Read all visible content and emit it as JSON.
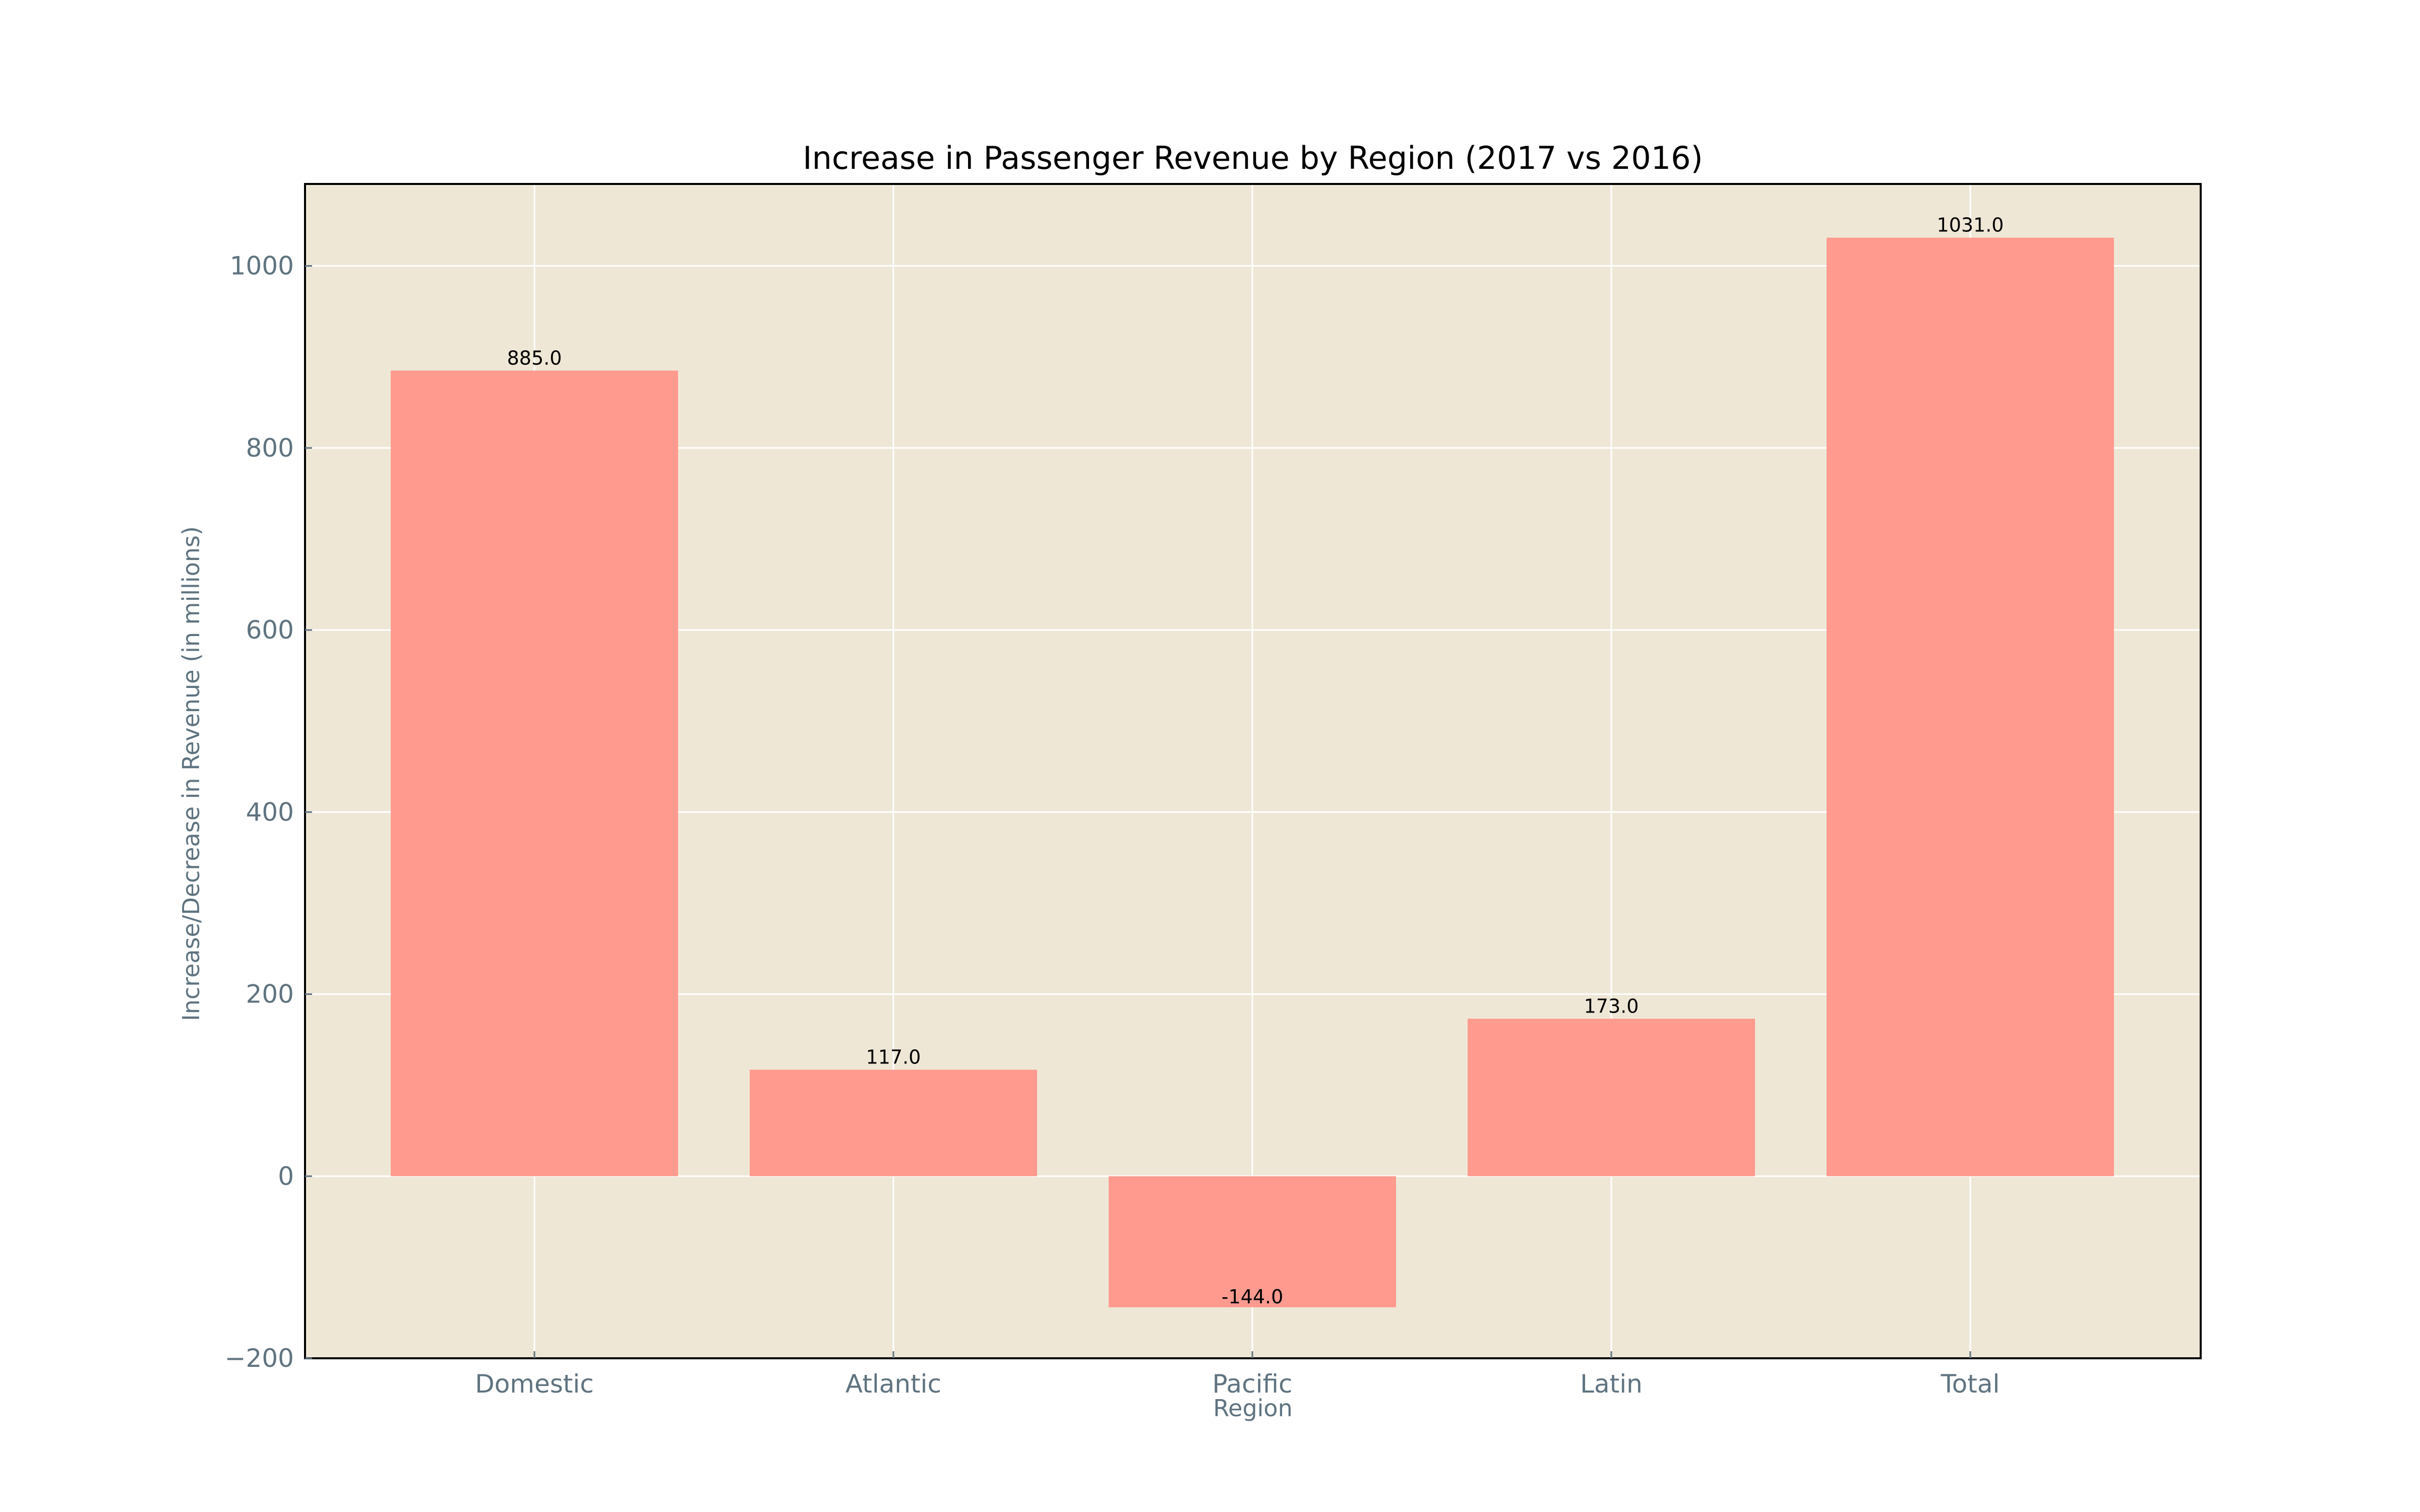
{
  "chart_data": {
    "type": "bar",
    "title": "Increase in Passenger Revenue by Region (2017 vs 2016)",
    "xlabel": "Region",
    "ylabel": "Increase/Decrease in Revenue (in millions)",
    "categories": [
      "Domestic",
      "Atlantic",
      "Pacific",
      "Latin",
      "Total"
    ],
    "values": [
      885.0,
      117.0,
      -144.0,
      173.0,
      1031.0
    ],
    "data_labels": [
      "885.0",
      "117.0",
      "-144.0",
      "173.0",
      "1031.0"
    ],
    "ylim": [
      -200,
      1090
    ],
    "yticks": [
      -200,
      0,
      200,
      400,
      600,
      800,
      1000
    ],
    "ytick_labels": [
      "−200",
      "0",
      "200",
      "400",
      "600",
      "800",
      "1000"
    ],
    "grid": true,
    "legend": "none",
    "colors": {
      "bar": "#ff9a8f",
      "plot_background": "#efe7d6",
      "grid": "#ffffff",
      "axis_text": "#5f7380",
      "frame": "#000000"
    }
  }
}
